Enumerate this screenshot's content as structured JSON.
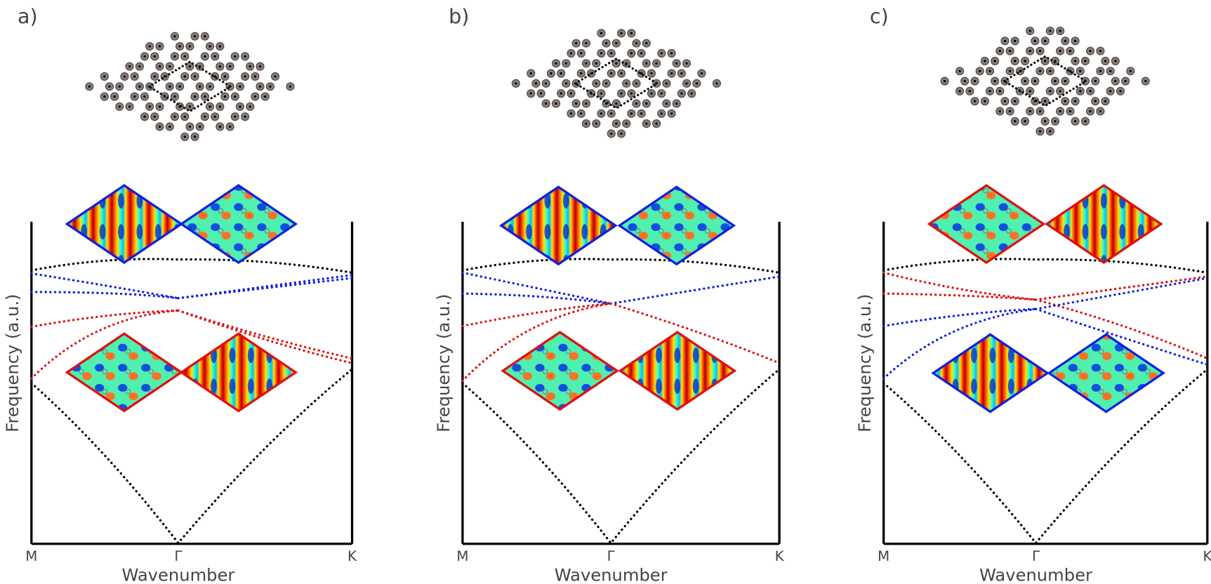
{
  "panels": [
    {
      "label": "a)",
      "x_axis": {
        "title": "Wavenumber",
        "ticks": [
          "M",
          "Γ",
          "K"
        ]
      },
      "y_axis": {
        "title": "Frequency (a.u.)"
      }
    },
    {
      "label": "b)",
      "x_axis": {
        "title": "Wavenumber",
        "ticks": [
          "M",
          "Γ",
          "K"
        ]
      },
      "y_axis": {
        "title": "Frequency (a.u.)"
      }
    },
    {
      "label": "c)",
      "x_axis": {
        "title": "Wavenumber",
        "ticks": [
          "M",
          "Γ",
          "K"
        ]
      },
      "y_axis": {
        "title": "Frequency (a.u.)"
      }
    }
  ]
}
